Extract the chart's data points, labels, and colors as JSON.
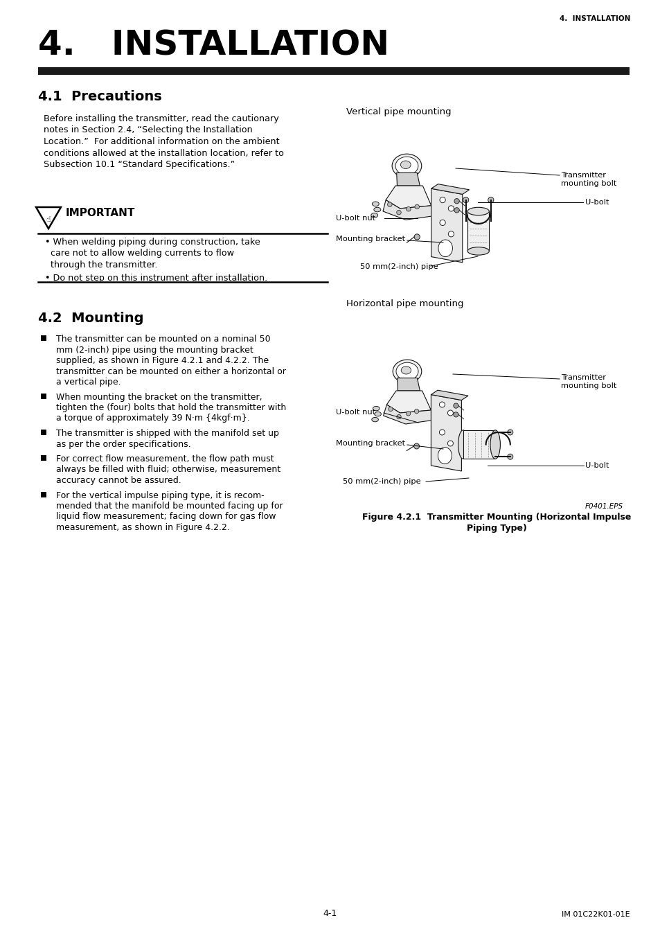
{
  "page_header": "4.  INSTALLATION",
  "page_footer_left": "4-1",
  "page_footer_right": "IM 01C22K01-01E",
  "main_title": "4.   INSTALLATION",
  "section1_title": "4.1  Precautions",
  "section1_body_lines": [
    "Before installing the transmitter, read the cautionary",
    "notes in Section 2.4, “Selecting the Installation",
    "Location.”  For additional information on the ambient",
    "conditions allowed at the installation location, refer to",
    "Subsection 10.1 “Standard Specifications.”"
  ],
  "important_title": "IMPORTANT",
  "important_bullet1_lines": [
    "• When welding piping during construction, take",
    "  care not to allow welding currents to flow",
    "  through the transmitter."
  ],
  "important_bullet2": "• Do not step on this instrument after installation.",
  "section2_title": "4.2  Mounting",
  "section2_bullets": [
    "The transmitter can be mounted on a nominal 50\nmm (2-inch) pipe using the mounting bracket\nsupplied, as shown in Figure 4.2.1 and 4.2.2. The\ntransmitter can be mounted on either a horizontal or\na vertical pipe.",
    "When mounting the bracket on the transmitter,\ntighten the (four) bolts that hold the transmitter with\na torque of approximately 39 N·m {4kgf·m}.",
    "The transmitter is shipped with the manifold set up\nas per the order specifications.",
    "For correct flow measurement, the flow path must\nalways be filled with fluid; otherwise, measurement\naccuracy cannot be assured.",
    "For the vertical impulse piping type, it is recom-\nmended that the manifold be mounted facing up for\nliquid flow measurement; facing down for gas flow\nmeasurement, as shown in Figure 4.2.2."
  ],
  "fig_caption_line1": "Figure 4.2.1  Transmitter Mounting (Horizontal Impulse",
  "fig_caption_line2": "Piping Type)",
  "right_col_label1": "Vertical pipe mounting",
  "right_col_label2": "Horizontal pipe mounting",
  "fig_label": "F0401.EPS",
  "bg_color": "#ffffff",
  "text_color": "#000000",
  "title_bar_color": "#1a1a1a",
  "lm": 0.058,
  "rc": 0.5
}
